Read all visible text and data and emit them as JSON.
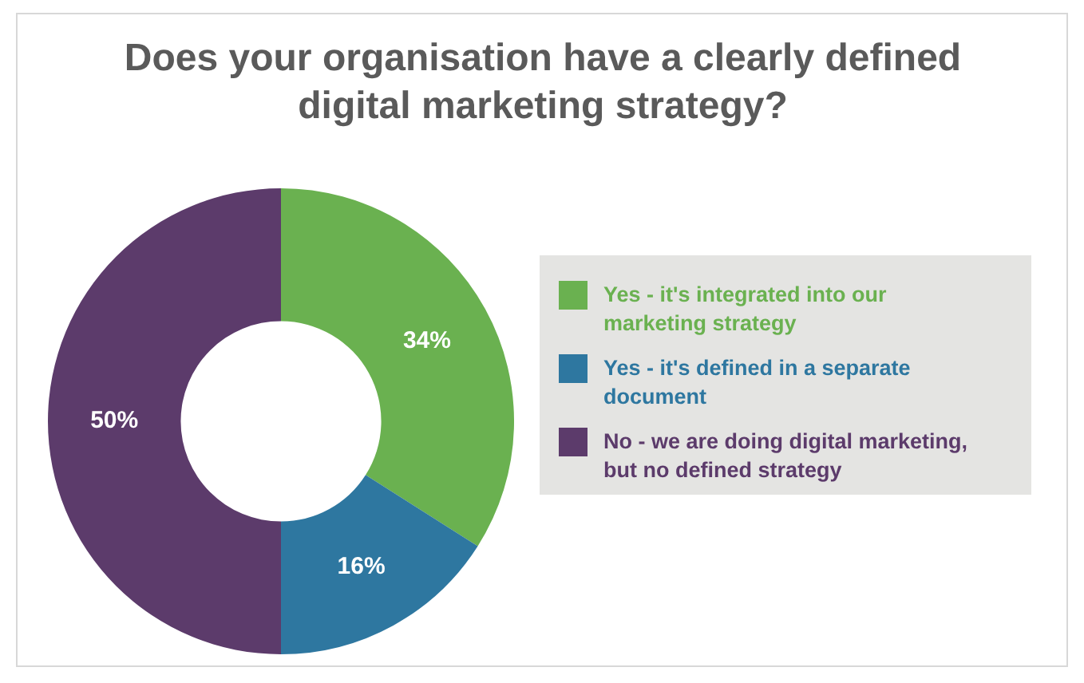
{
  "chart_data": {
    "type": "donut",
    "title": "Does your organisation have a clearly defined digital marketing strategy?",
    "categories": [
      "Yes - it's integrated into our marketing strategy",
      "Yes - it's defined in a separate document",
      "No - we are doing digital marketing, but no defined strategy"
    ],
    "values": [
      34,
      16,
      50
    ],
    "colors": [
      "#6ab150",
      "#2e77a0",
      "#5c3b6b"
    ],
    "value_labels": [
      "34%",
      "16%",
      "50%"
    ],
    "legend": "right"
  }
}
